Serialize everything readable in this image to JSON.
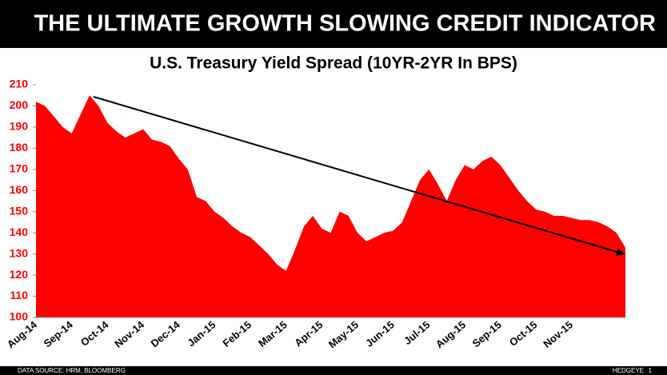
{
  "header": {
    "title": "THE ULTIMATE GROWTH SLOWING CREDIT INDICATOR"
  },
  "chart_data": {
    "type": "area",
    "title": "U.S. Treasury Yield Spread (10YR-2YR In BPS)",
    "categories": [
      "Aug-14",
      null,
      null,
      null,
      "Sep-14",
      null,
      null,
      null,
      "Oct-14",
      null,
      null,
      null,
      "Nov-14",
      null,
      null,
      null,
      "Dec-14",
      null,
      null,
      null,
      "Jan-15",
      null,
      null,
      null,
      "Feb-15",
      null,
      null,
      null,
      "Mar-15",
      null,
      null,
      null,
      "Apr-15",
      null,
      null,
      null,
      "May-15",
      null,
      null,
      null,
      "Jun-15",
      null,
      null,
      null,
      "Jul-15",
      null,
      null,
      null,
      "Aug-15",
      null,
      null,
      null,
      "Sep-15",
      null,
      null,
      null,
      "Oct-15",
      null,
      null,
      null,
      "Nov-15",
      null,
      null,
      null,
      null,
      null,
      null
    ],
    "values": [
      202,
      200,
      195,
      190,
      187,
      196,
      205,
      200,
      192,
      188,
      185,
      187,
      189,
      184,
      183,
      181,
      175,
      170,
      157,
      155,
      150,
      147,
      143,
      140,
      138,
      134,
      130,
      125,
      122,
      132,
      143,
      148,
      142,
      140,
      150,
      148,
      140,
      136,
      138,
      140,
      141,
      145,
      155,
      165,
      170,
      163,
      155,
      165,
      172,
      170,
      174,
      176,
      172,
      166,
      160,
      155,
      151,
      150,
      148,
      148,
      147,
      146,
      146,
      145,
      143,
      140,
      133
    ],
    "color": "#ff0000",
    "ylim": [
      100,
      210
    ],
    "yticks": [
      100,
      110,
      120,
      130,
      140,
      150,
      160,
      170,
      180,
      190,
      200,
      210
    ]
  },
  "footer": {
    "source": "DATA SOURCE: HRM, BLOOMBERG",
    "brand": "HEDGEYE",
    "page": "1"
  }
}
